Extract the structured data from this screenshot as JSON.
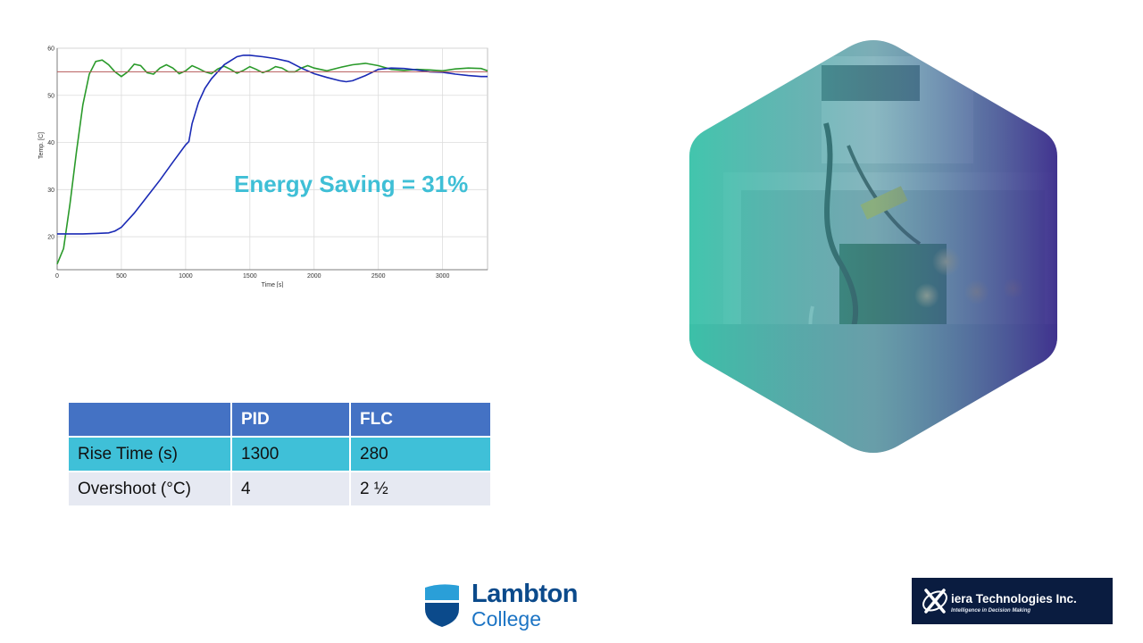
{
  "chart_data": {
    "type": "line",
    "title": "",
    "xlabel": "Time [s]",
    "ylabel": "Temp. [C]",
    "xlim": [
      0,
      3350
    ],
    "ylim": [
      13,
      60
    ],
    "x_ticks": [
      0,
      500,
      1000,
      1500,
      2000,
      2500,
      3000
    ],
    "y_ticks": [
      20,
      30,
      40,
      50,
      60
    ],
    "grid": true,
    "series": [
      {
        "color": "#2a9a2a",
        "x": [
          0,
          50,
          100,
          150,
          200,
          250,
          300,
          350,
          400,
          450,
          500,
          550,
          600,
          650,
          700,
          750,
          800,
          850,
          900,
          950,
          1000,
          1050,
          1100,
          1150,
          1200,
          1250,
          1300,
          1350,
          1400,
          1450,
          1500,
          1550,
          1600,
          1650,
          1700,
          1750,
          1800,
          1850,
          1900,
          1950,
          2000,
          2100,
          2200,
          2300,
          2400,
          2500,
          2600,
          2700,
          2800,
          2900,
          3000,
          3100,
          3200,
          3300,
          3350
        ],
        "y": [
          14.2,
          17.5,
          27,
          38,
          48,
          54.5,
          57.2,
          57.5,
          56.5,
          55,
          54,
          55,
          56.6,
          56.3,
          54.8,
          54.5,
          55.8,
          56.5,
          55.8,
          54.6,
          55.2,
          56.3,
          55.7,
          55,
          54.6,
          55.6,
          56.2,
          55.5,
          54.7,
          55.3,
          56.1,
          55.5,
          54.8,
          55.3,
          56.1,
          55.8,
          55,
          55,
          55.8,
          56.3,
          55.8,
          55.2,
          55.9,
          56.5,
          56.8,
          56.3,
          55.5,
          55.3,
          55.5,
          55.4,
          55.2,
          55.6,
          55.8,
          55.7,
          55.2
        ]
      },
      {
        "color": "#1a2ab5",
        "x": [
          0,
          100,
          200,
          300,
          400,
          450,
          500,
          600,
          700,
          800,
          900,
          1000,
          1025,
          1050,
          1100,
          1150,
          1200,
          1300,
          1400,
          1450,
          1500,
          1600,
          1700,
          1800,
          1900,
          2000,
          2100,
          2200,
          2250,
          2300,
          2400,
          2500,
          2600,
          2700,
          2800,
          2900,
          3000,
          3100,
          3200,
          3300,
          3350
        ],
        "y": [
          20.6,
          20.6,
          20.6,
          20.7,
          20.8,
          21.2,
          22,
          25,
          28.5,
          32,
          35.8,
          39.5,
          40.2,
          44,
          48.5,
          51.5,
          53.5,
          56.5,
          58.2,
          58.5,
          58.5,
          58.2,
          57.8,
          57.2,
          55.8,
          54.6,
          53.8,
          53.1,
          52.9,
          53.1,
          54.2,
          55.5,
          55.8,
          55.7,
          55.4,
          55,
          54.9,
          54.5,
          54.2,
          54,
          54
        ]
      },
      {
        "color": "#b55a5a",
        "x": [
          0,
          3350
        ],
        "y": [
          55,
          55
        ]
      }
    ]
  },
  "annotation": "Energy Saving = 31%",
  "table": {
    "headers": [
      "",
      "PID",
      "FLC"
    ],
    "rows": [
      [
        "Rise Time (s)",
        "1300",
        "280"
      ],
      [
        "Overshoot (°C)",
        "4",
        "2 ½"
      ]
    ]
  },
  "logos": {
    "lambton": {
      "name": "Lambton",
      "sub": "College"
    },
    "xiera": {
      "name": "iera Technologies Inc.",
      "tagline": "Intelligence in Decision Making"
    }
  }
}
